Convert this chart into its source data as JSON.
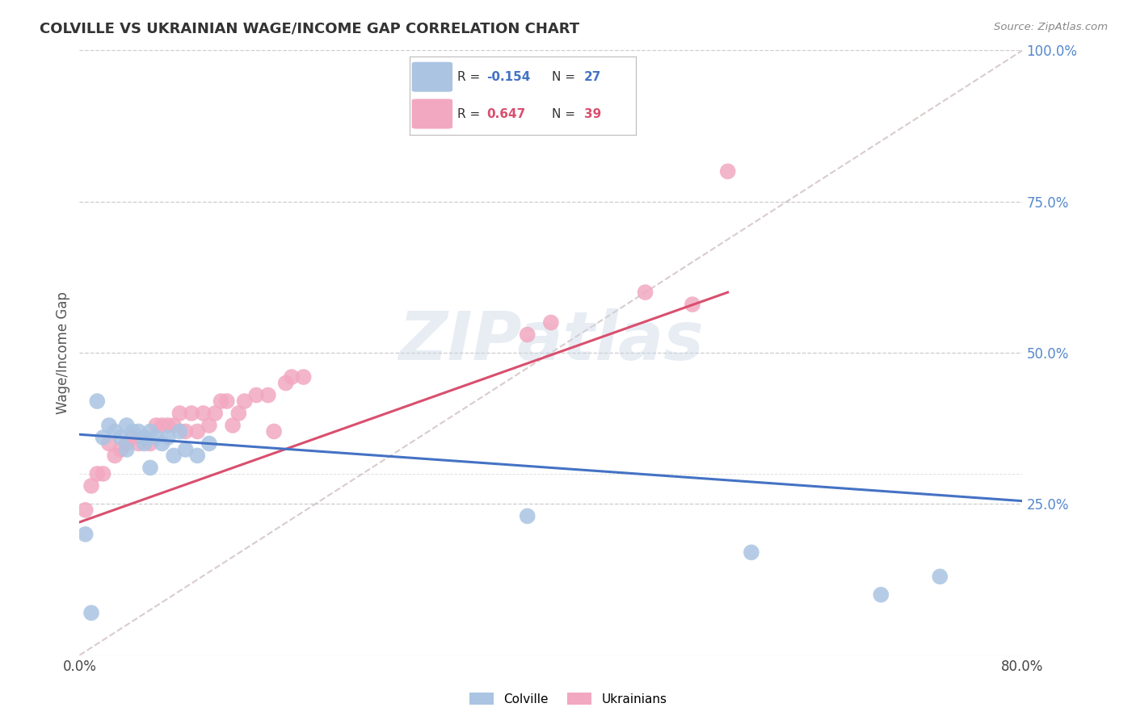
{
  "title": "COLVILLE VS UKRAINIAN WAGE/INCOME GAP CORRELATION CHART",
  "source": "Source: ZipAtlas.com",
  "ylabel": "Wage/Income Gap",
  "colville_R": -0.154,
  "colville_N": 27,
  "ukrainian_R": 0.647,
  "ukrainian_N": 39,
  "colville_color": "#aac4e2",
  "ukrainian_color": "#f2a8c0",
  "colville_line_color": "#4472C4",
  "ukrainian_line_color": "#D94F6E",
  "ref_line_color": "#ccbbbb",
  "background_color": "#ffffff",
  "grid_color": "#cccccc",
  "ytick_color": "#5588cc",
  "colville_x": [
    0.005,
    0.01,
    0.015,
    0.02,
    0.025,
    0.03,
    0.035,
    0.04,
    0.04,
    0.045,
    0.05,
    0.055,
    0.055,
    0.06,
    0.06,
    0.065,
    0.07,
    0.075,
    0.08,
    0.085,
    0.09,
    0.1,
    0.11,
    0.38,
    0.57,
    0.68,
    0.73
  ],
  "colville_y": [
    0.2,
    0.07,
    0.42,
    0.36,
    0.38,
    0.37,
    0.36,
    0.38,
    0.34,
    0.37,
    0.37,
    0.35,
    0.36,
    0.37,
    0.31,
    0.36,
    0.35,
    0.36,
    0.33,
    0.37,
    0.34,
    0.33,
    0.35,
    0.23,
    0.17,
    0.1,
    0.13
  ],
  "ukrainian_x": [
    0.005,
    0.01,
    0.015,
    0.02,
    0.025,
    0.03,
    0.035,
    0.04,
    0.045,
    0.05,
    0.055,
    0.06,
    0.065,
    0.07,
    0.075,
    0.08,
    0.085,
    0.09,
    0.095,
    0.1,
    0.105,
    0.11,
    0.115,
    0.12,
    0.125,
    0.13,
    0.135,
    0.14,
    0.15,
    0.16,
    0.165,
    0.175,
    0.18,
    0.19,
    0.38,
    0.4,
    0.48,
    0.52,
    0.55
  ],
  "ukrainian_y": [
    0.24,
    0.28,
    0.3,
    0.3,
    0.35,
    0.33,
    0.34,
    0.35,
    0.36,
    0.35,
    0.36,
    0.35,
    0.38,
    0.38,
    0.38,
    0.38,
    0.4,
    0.37,
    0.4,
    0.37,
    0.4,
    0.38,
    0.4,
    0.42,
    0.42,
    0.38,
    0.4,
    0.42,
    0.43,
    0.43,
    0.37,
    0.45,
    0.46,
    0.46,
    0.53,
    0.55,
    0.6,
    0.58,
    0.8
  ],
  "colville_line_x": [
    0.0,
    0.8
  ],
  "colville_line_y": [
    0.365,
    0.255
  ],
  "ukrainian_line_x": [
    0.0,
    0.55
  ],
  "ukrainian_line_y": [
    0.22,
    0.6
  ],
  "ref_line_x": [
    0.0,
    0.8
  ],
  "ref_line_y": [
    0.0,
    1.0
  ],
  "xlim": [
    0.0,
    0.8
  ],
  "ylim": [
    0.0,
    1.0
  ],
  "yticks": [
    0.25,
    0.5,
    0.75,
    1.0
  ],
  "ytick_labels": [
    "25.0%",
    "50.0%",
    "75.0%",
    "100.0%"
  ],
  "xticks": [
    0.0,
    0.1,
    0.2,
    0.3,
    0.4,
    0.5,
    0.6,
    0.7,
    0.8
  ],
  "xtick_labels": [
    "0.0%",
    "",
    "",
    "",
    "",
    "",
    "",
    "",
    "80.0%"
  ],
  "watermark": "ZIPatlas",
  "legend_colville_label": "Colville",
  "legend_ukrainian_label": "Ukrainians"
}
